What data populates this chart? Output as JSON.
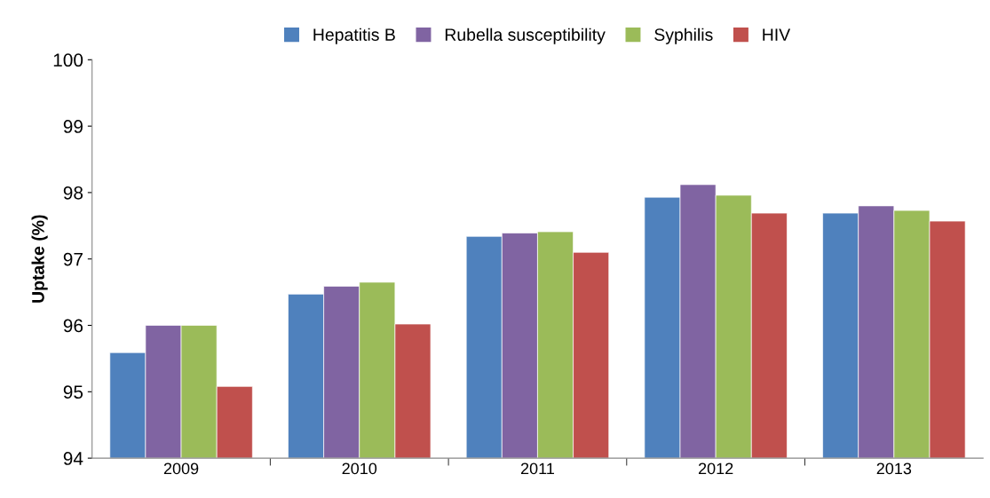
{
  "chart_data": {
    "type": "bar",
    "ylabel": "Uptake (%)",
    "categories": [
      "2009",
      "2010",
      "2011",
      "2012",
      "2013"
    ],
    "series": [
      {
        "name": "Hepatitis B",
        "color": "#4f81bd",
        "values": [
          95.59,
          96.47,
          97.34,
          97.93,
          97.69
        ]
      },
      {
        "name": "Rubella susceptibility",
        "color": "#8064a2",
        "values": [
          96.0,
          96.59,
          97.39,
          98.12,
          97.8
        ]
      },
      {
        "name": "Syphilis",
        "color": "#9bbb59",
        "values": [
          96.0,
          96.65,
          97.41,
          97.96,
          97.73
        ]
      },
      {
        "name": "HIV",
        "color": "#c0504d",
        "values": [
          95.08,
          96.02,
          97.1,
          97.69,
          97.57
        ]
      }
    ],
    "ylim": [
      94,
      100
    ],
    "yticks": [
      94,
      95,
      96,
      97,
      98,
      99,
      100
    ],
    "grid": false,
    "legend": "top"
  }
}
